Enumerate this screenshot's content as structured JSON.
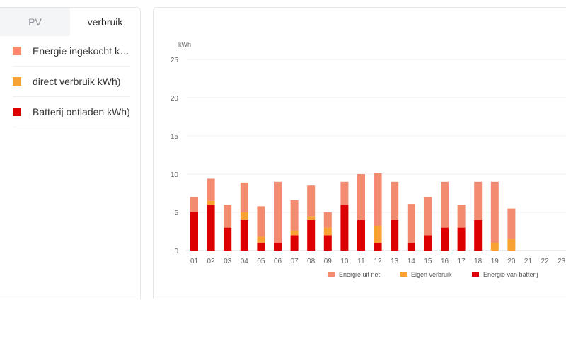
{
  "tabs": [
    {
      "label": "PV",
      "active": false
    },
    {
      "label": "verbruik",
      "active": true
    }
  ],
  "legend_panel": [
    {
      "label": "Energie ingekocht k…",
      "color": "#f28b70"
    },
    {
      "label": "direct verbruik kWh)",
      "color": "#f7a233"
    },
    {
      "label": "Batterij ontladen kWh)",
      "color": "#dd0000"
    }
  ],
  "chart_data": {
    "type": "bar",
    "stacked": true,
    "ylabel": "kWh",
    "ylim": [
      0,
      25
    ],
    "yticks": [
      0,
      5,
      10,
      15,
      20,
      25
    ],
    "grid": true,
    "legend_position": "bottom",
    "categories": [
      "01",
      "02",
      "03",
      "04",
      "05",
      "06",
      "07",
      "08",
      "09",
      "10",
      "11",
      "12",
      "13",
      "14",
      "15",
      "16",
      "17",
      "18",
      "19",
      "20",
      "21",
      "22",
      "23"
    ],
    "series": [
      {
        "name": "Energie van batterij",
        "color": "#dd0000",
        "values": [
          5,
          6,
          3,
          4,
          1,
          1,
          2,
          4,
          2,
          6,
          4,
          1,
          4,
          1,
          2,
          3,
          3,
          4,
          0,
          0,
          0,
          0,
          0
        ]
      },
      {
        "name": "Eigen verbruik",
        "color": "#f7a233",
        "values": [
          0,
          0.5,
          0,
          1,
          0.8,
          0,
          0.6,
          0.5,
          1,
          0,
          0,
          2.2,
          0,
          0,
          0,
          0,
          0,
          0,
          1,
          1.5,
          0,
          0,
          0
        ]
      },
      {
        "name": "Energie uit net",
        "color": "#f28b70",
        "values": [
          2,
          2.9,
          3,
          3.9,
          4,
          8,
          4,
          4,
          2,
          3,
          6,
          6.9,
          5,
          5.1,
          5,
          6,
          3,
          5,
          8,
          4,
          0,
          0,
          0
        ]
      }
    ],
    "legend_order": [
      "Energie uit net",
      "Eigen verbruik",
      "Energie van batterij"
    ]
  }
}
